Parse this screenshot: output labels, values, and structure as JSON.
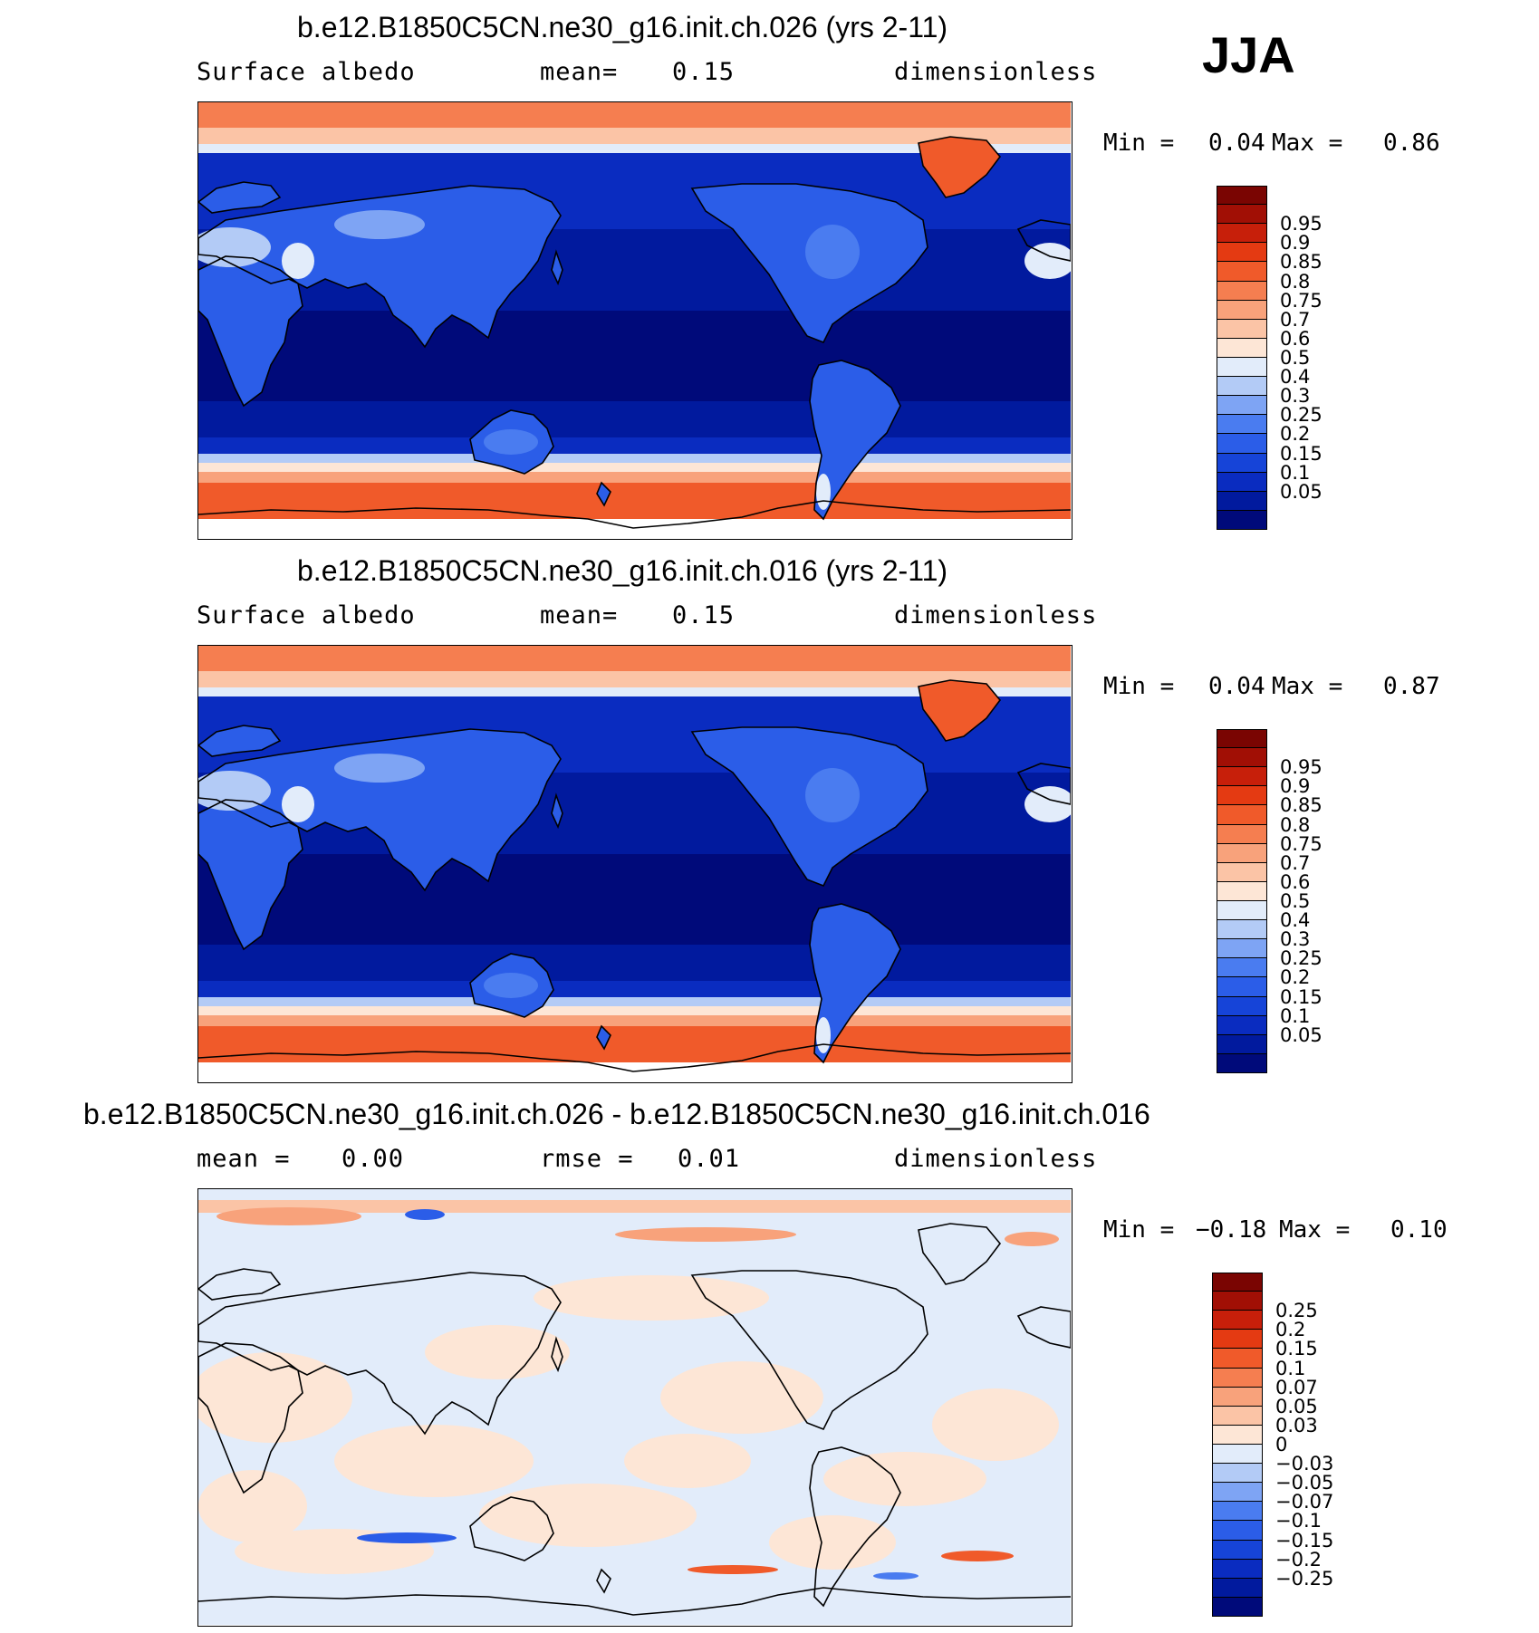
{
  "season": "JJA",
  "panels": [
    {
      "title": "b.e12.B1850C5CN.ne30_g16.init.ch.026 (yrs 2-11)",
      "left_label": "Surface albedo",
      "mid_label": "mean=",
      "mid_value": "0.15",
      "right_label": "dimensionless",
      "min_label": "Min =",
      "min_value": "0.04",
      "max_label": "Max =",
      "max_value": "0.86",
      "kind": "albedo",
      "colors": [
        "#000a7a",
        "#011a9e",
        "#0a2cc0",
        "#1644d8",
        "#2b5de8",
        "#4a7cf0",
        "#7ea4f4",
        "#b3cbf6",
        "#e2ecfa",
        "#fde6d6",
        "#fbc4a6",
        "#f8a27b",
        "#f57e50",
        "#f05a2a",
        "#e43a12",
        "#c71f0a",
        "#a10f05",
        "#7a0502"
      ],
      "labels": [
        "0.05",
        "0.1",
        "0.15",
        "0.2",
        "0.25",
        "0.3",
        "0.4",
        "0.5",
        "0.6",
        "0.7",
        "0.75",
        "0.8",
        "0.85",
        "0.9",
        "0.95"
      ]
    },
    {
      "title": "b.e12.B1850C5CN.ne30_g16.init.ch.016 (yrs 2-11)",
      "left_label": "Surface albedo",
      "mid_label": "mean=",
      "mid_value": "0.15",
      "right_label": "dimensionless",
      "min_label": "Min =",
      "min_value": "0.04",
      "max_label": "Max =",
      "max_value": "0.87",
      "kind": "albedo",
      "colors": [
        "#000a7a",
        "#011a9e",
        "#0a2cc0",
        "#1644d8",
        "#2b5de8",
        "#4a7cf0",
        "#7ea4f4",
        "#b3cbf6",
        "#e2ecfa",
        "#fde6d6",
        "#fbc4a6",
        "#f8a27b",
        "#f57e50",
        "#f05a2a",
        "#e43a12",
        "#c71f0a",
        "#a10f05",
        "#7a0502"
      ],
      "labels": [
        "0.05",
        "0.1",
        "0.15",
        "0.2",
        "0.25",
        "0.3",
        "0.4",
        "0.5",
        "0.6",
        "0.7",
        "0.75",
        "0.8",
        "0.85",
        "0.9",
        "0.95"
      ]
    },
    {
      "title": "b.e12.B1850C5CN.ne30_g16.init.ch.026 - b.e12.B1850C5CN.ne30_g16.init.ch.016",
      "left_label": "mean =",
      "left_value": "0.00",
      "mid_label": "rmse =",
      "mid_value": "0.01",
      "right_label": "dimensionless",
      "min_label": "Min =",
      "min_value": "−0.18",
      "max_label": "Max =",
      "max_value": "0.10",
      "kind": "diff",
      "colors": [
        "#000a7a",
        "#011a9e",
        "#0a2cc0",
        "#1644d8",
        "#2b5de8",
        "#4a7cf0",
        "#7ea4f4",
        "#b3cbf6",
        "#e2ecfa",
        "#fde6d6",
        "#fbc4a6",
        "#f8a27b",
        "#f57e50",
        "#f05a2a",
        "#e43a12",
        "#c71f0a",
        "#a10f05",
        "#7a0502"
      ],
      "labels": [
        "−0.25",
        "−0.2",
        "−0.15",
        "−0.1",
        "−0.07",
        "−0.05",
        "−0.03",
        "0",
        "0.03",
        "0.05",
        "0.07",
        "0.1",
        "0.15",
        "0.2",
        "0.25"
      ]
    }
  ]
}
